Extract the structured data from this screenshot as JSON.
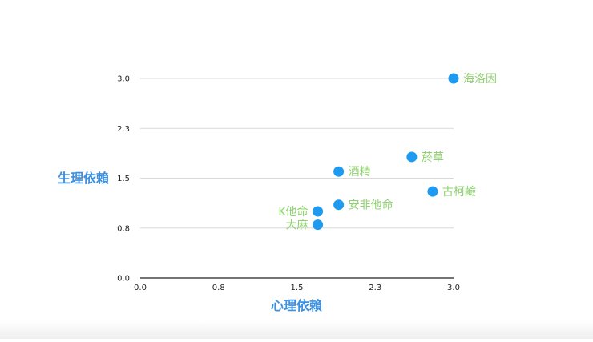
{
  "chart_data": {
    "type": "scatter",
    "xlabel": "心理依賴",
    "ylabel": "生理依賴",
    "xlim": [
      0,
      3
    ],
    "ylim": [
      0,
      3
    ],
    "x_ticks": [
      {
        "value": 0,
        "label": "0.0"
      },
      {
        "value": 0.75,
        "label": "0.8"
      },
      {
        "value": 1.5,
        "label": "1.5"
      },
      {
        "value": 2.25,
        "label": "2.3"
      },
      {
        "value": 3,
        "label": "3.0"
      }
    ],
    "y_ticks": [
      {
        "value": 0,
        "label": "0.0"
      },
      {
        "value": 0.75,
        "label": "0.8"
      },
      {
        "value": 1.5,
        "label": "1.5"
      },
      {
        "value": 2.25,
        "label": "2.3"
      },
      {
        "value": 3,
        "label": "3.0"
      }
    ],
    "grid": "horizontal",
    "points": [
      {
        "label": "海洛因",
        "x": 3.0,
        "y": 3.0,
        "label_side": "right"
      },
      {
        "label": "菸草",
        "x": 2.6,
        "y": 1.82,
        "label_side": "right"
      },
      {
        "label": "古柯鹼",
        "x": 2.8,
        "y": 1.3,
        "label_side": "right"
      },
      {
        "label": "酒精",
        "x": 1.9,
        "y": 1.6,
        "label_side": "right"
      },
      {
        "label": "安非他命",
        "x": 1.9,
        "y": 1.1,
        "label_side": "right"
      },
      {
        "label": "K他命",
        "x": 1.7,
        "y": 1.0,
        "label_side": "left"
      },
      {
        "label": "大麻",
        "x": 1.7,
        "y": 0.8,
        "label_side": "left"
      }
    ],
    "colors": {
      "point": "#1E9BF0",
      "label": "#8ED16E",
      "axis_title": "#3D8FE0",
      "grid": "#D9D9D9",
      "axis": "#222222",
      "tick": "#222222"
    }
  }
}
